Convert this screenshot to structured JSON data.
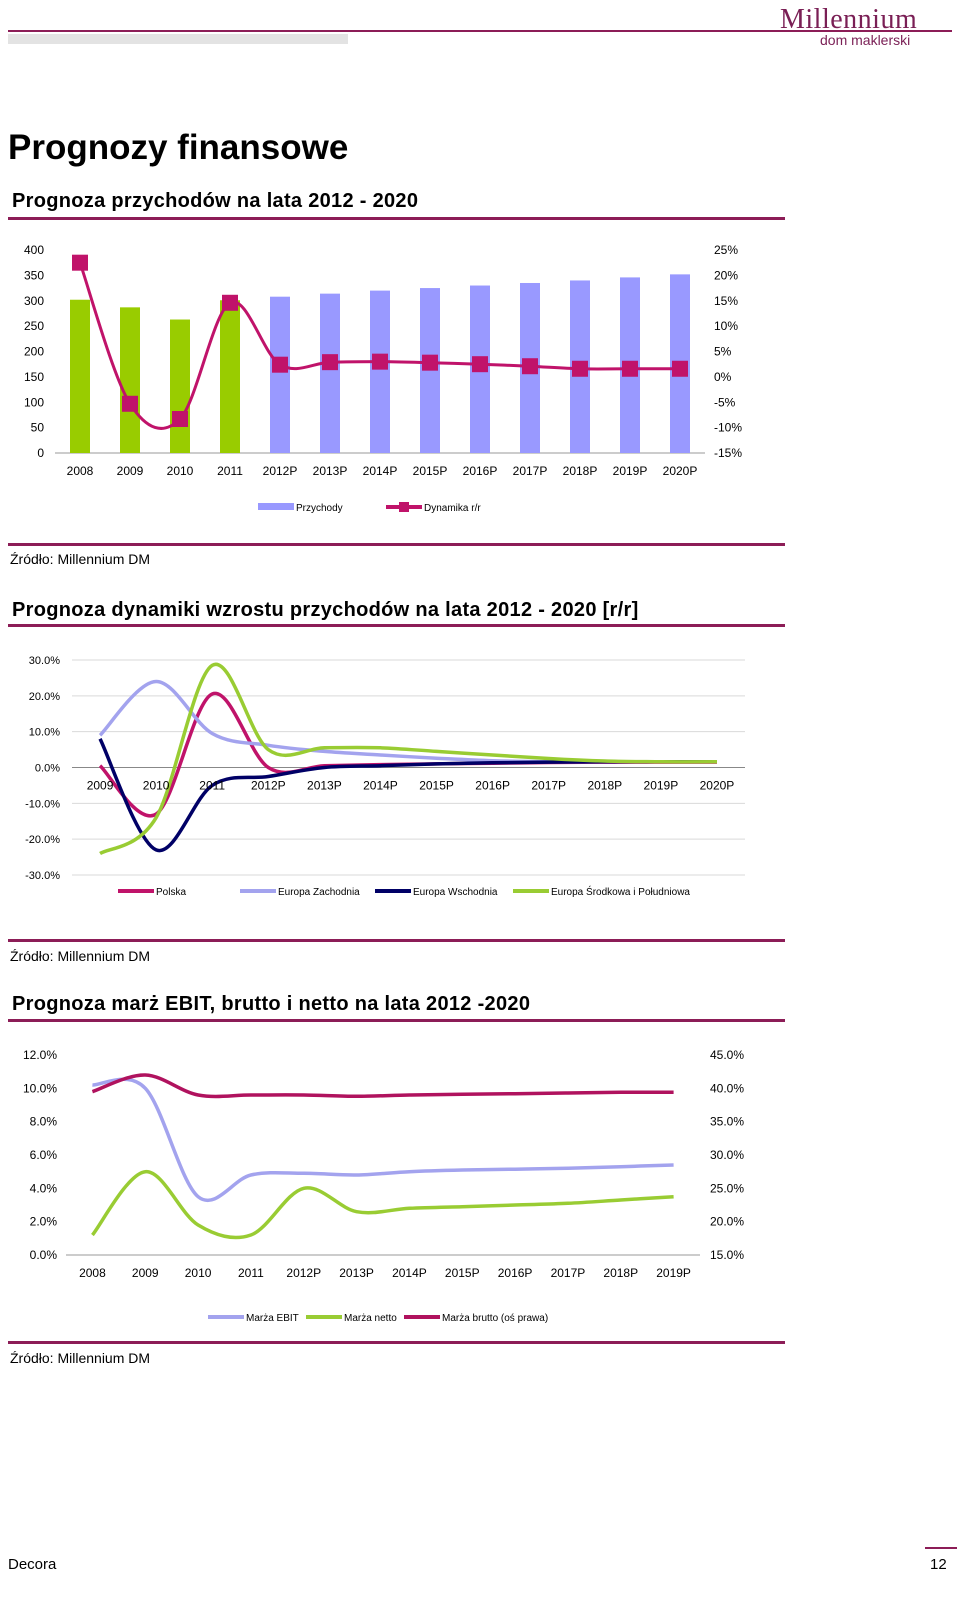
{
  "header": {
    "brand": "Millennium",
    "brand_sub": "dom maklerski",
    "brand_color": "#7a1f55"
  },
  "page_title": "Prognozy finansowe",
  "sections": [
    {
      "title": "Prognoza przychodów na lata 2012 - 2020",
      "source": "Źródło: Millennium DM"
    },
    {
      "title": "Prognoza dynamiki wzrostu przychodów na lata 2012 - 2020 [r/r]",
      "source": "Źródło: Millennium DM"
    },
    {
      "title": "Prognoza marż EBIT, brutto i netto na lata 2012  -2020",
      "source": "Źródło: Millennium DM"
    }
  ],
  "footer": {
    "left": "Decora",
    "page_number": "12"
  },
  "chart_data": [
    {
      "type": "bar",
      "categories": [
        "2008",
        "2009",
        "2010",
        "2011",
        "2012P",
        "2013P",
        "2014P",
        "2015P",
        "2016P",
        "2017P",
        "2018P",
        "2019P",
        "2020P"
      ],
      "series": [
        {
          "name": "Przychody",
          "type": "bar",
          "axis": "left",
          "values": [
            302,
            287,
            263,
            301,
            308,
            314,
            320,
            325,
            330,
            335,
            340,
            346,
            352
          ],
          "colors": [
            "#99cc00",
            "#99cc00",
            "#99cc00",
            "#99cc00",
            "#9999ff",
            "#9999ff",
            "#9999ff",
            "#9999ff",
            "#9999ff",
            "#9999ff",
            "#9999ff",
            "#9999ff",
            "#9999ff"
          ]
        },
        {
          "name": "Dynamika r/r",
          "type": "line",
          "axis": "right",
          "color": "#c0136a",
          "values": [
            22.5,
            -5.3,
            -8.3,
            14.6,
            2.4,
            2.9,
            3.0,
            2.8,
            2.5,
            2.1,
            1.6,
            1.6,
            1.6
          ]
        }
      ],
      "y_left": {
        "min": 0,
        "max": 400,
        "ticks": [
          "0",
          "50",
          "100",
          "150",
          "200",
          "250",
          "300",
          "350",
          "400"
        ]
      },
      "y_right": {
        "min": -15,
        "max": 25,
        "ticks": [
          "-15%",
          "-10%",
          "-5%",
          "0%",
          "5%",
          "10%",
          "15%",
          "20%",
          "25%"
        ]
      },
      "legend": [
        "Przychody",
        "Dynamika r/r"
      ],
      "legend_position": "bottom"
    },
    {
      "type": "line",
      "categories": [
        "2009",
        "2010",
        "2011",
        "2012P",
        "2013P",
        "2014P",
        "2015P",
        "2016P",
        "2017P",
        "2018P",
        "2019P",
        "2020P"
      ],
      "series": [
        {
          "name": "Polska",
          "color": "#c0136a",
          "values": [
            0.5,
            -13.0,
            20.5,
            0.0,
            0.5,
            0.8,
            1.0,
            1.2,
            1.4,
            1.5,
            1.5,
            1.5
          ]
        },
        {
          "name": "Europa Zachodnia",
          "color": "#a3a3ee",
          "values": [
            9.0,
            24.0,
            9.5,
            6.2,
            4.5,
            3.5,
            2.6,
            1.9,
            1.6,
            1.6,
            1.6,
            1.6
          ]
        },
        {
          "name": "Europa Wschodnia",
          "color": "#000066",
          "values": [
            8.0,
            -23.0,
            -5.0,
            -2.5,
            0.0,
            0.5,
            1.0,
            1.3,
            1.5,
            1.6,
            1.6,
            1.6
          ]
        },
        {
          "name": "Europa Środkowa i Południowa",
          "color": "#99cc33",
          "values": [
            -24.0,
            -14.0,
            28.5,
            5.0,
            5.5,
            5.5,
            4.5,
            3.5,
            2.5,
            1.8,
            1.6,
            1.6
          ]
        }
      ],
      "y": {
        "min": -30,
        "max": 30,
        "ticks": [
          "-30.0%",
          "-20.0%",
          "-10.0%",
          "0.0%",
          "10.0%",
          "20.0%",
          "30.0%"
        ]
      },
      "legend": [
        "Polska",
        "Europa Zachodnia",
        "Europa Wschodnia",
        "Europa Środkowa i Południowa"
      ],
      "legend_position": "bottom"
    },
    {
      "type": "line",
      "categories": [
        "2008",
        "2009",
        "2010",
        "2011",
        "2012P",
        "2013P",
        "2014P",
        "2015P",
        "2016P",
        "2017P",
        "2018P",
        "2019P"
      ],
      "series": [
        {
          "name": "Marża EBIT",
          "color": "#a3a3ee",
          "axis": "left",
          "values": [
            10.2,
            10.0,
            3.5,
            4.8,
            4.9,
            4.8,
            5.0,
            5.1,
            5.15,
            5.2,
            5.3,
            5.4
          ]
        },
        {
          "name": "Marża netto",
          "color": "#99cc33",
          "axis": "left",
          "values": [
            1.2,
            5.0,
            1.8,
            1.2,
            4.0,
            2.6,
            2.8,
            2.9,
            3.0,
            3.1,
            3.3,
            3.5
          ]
        },
        {
          "name": "Marża brutto (oś prawa)",
          "color": "#b0125e",
          "axis": "right",
          "values": [
            39.5,
            42.0,
            39.0,
            39.0,
            39.0,
            38.8,
            39.0,
            39.1,
            39.2,
            39.3,
            39.4,
            39.4
          ]
        }
      ],
      "y_left": {
        "min": 0,
        "max": 12,
        "ticks": [
          "0.0%",
          "2.0%",
          "4.0%",
          "6.0%",
          "8.0%",
          "10.0%",
          "12.0%"
        ]
      },
      "y_right": {
        "min": 15,
        "max": 45,
        "ticks": [
          "15.0%",
          "20.0%",
          "25.0%",
          "30.0%",
          "35.0%",
          "40.0%",
          "45.0%"
        ]
      },
      "legend": [
        "Marża EBIT",
        "Marża netto",
        "Marża brutto (oś prawa)"
      ],
      "legend_position": "bottom"
    }
  ]
}
